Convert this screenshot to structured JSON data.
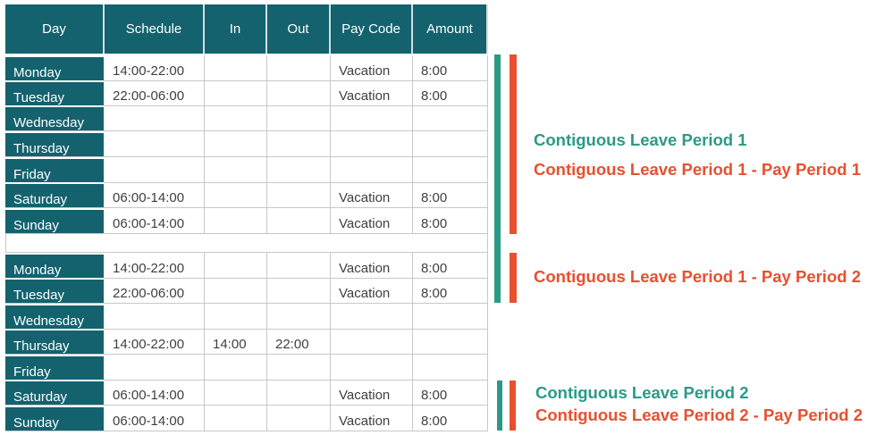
{
  "columns": [
    "Day",
    "Schedule",
    "In",
    "Out",
    "Pay Code",
    "Amount"
  ],
  "week1": [
    {
      "day": "Monday",
      "schedule": "14:00-22:00",
      "in": "",
      "out": "",
      "pay_code": "Vacation",
      "amount": "8:00"
    },
    {
      "day": "Tuesday",
      "schedule": "22:00-06:00",
      "in": "",
      "out": "",
      "pay_code": "Vacation",
      "amount": "8:00"
    },
    {
      "day": "Wednesday",
      "schedule": "",
      "in": "",
      "out": "",
      "pay_code": "",
      "amount": ""
    },
    {
      "day": "Thursday",
      "schedule": "",
      "in": "",
      "out": "",
      "pay_code": "",
      "amount": ""
    },
    {
      "day": "Friday",
      "schedule": "",
      "in": "",
      "out": "",
      "pay_code": "",
      "amount": ""
    },
    {
      "day": "Saturday",
      "schedule": "06:00-14:00",
      "in": "",
      "out": "",
      "pay_code": "Vacation",
      "amount": "8:00"
    },
    {
      "day": "Sunday",
      "schedule": "06:00-14:00",
      "in": "",
      "out": "",
      "pay_code": "Vacation",
      "amount": "8:00"
    }
  ],
  "week2": [
    {
      "day": "Monday",
      "schedule": "14:00-22:00",
      "in": "",
      "out": "",
      "pay_code": "Vacation",
      "amount": "8:00"
    },
    {
      "day": "Tuesday",
      "schedule": "22:00-06:00",
      "in": "",
      "out": "",
      "pay_code": "Vacation",
      "amount": "8:00"
    },
    {
      "day": "Wednesday",
      "schedule": "",
      "in": "",
      "out": "",
      "pay_code": "",
      "amount": ""
    },
    {
      "day": "Thursday",
      "schedule": "14:00-22:00",
      "in": "14:00",
      "out": "22:00",
      "pay_code": "",
      "amount": ""
    },
    {
      "day": "Friday",
      "schedule": "",
      "in": "",
      "out": "",
      "pay_code": "",
      "amount": ""
    },
    {
      "day": "Saturday",
      "schedule": "06:00-14:00",
      "in": "",
      "out": "",
      "pay_code": "Vacation",
      "amount": "8:00"
    },
    {
      "day": "Sunday",
      "schedule": "06:00-14:00",
      "in": "",
      "out": "",
      "pay_code": "Vacation",
      "amount": "8:00"
    }
  ],
  "annotations": {
    "clp1": "Contiguous Leave Period 1",
    "clp1_pp1": "Contiguous Leave Period 1 - Pay Period 1",
    "clp1_pp2": "Contiguous Leave Period 1 - Pay Period 2",
    "clp2": "Contiguous Leave Period 2",
    "clp2_pp2": "Contiguous Leave Period 2 - Pay Period 2"
  },
  "colors": {
    "header": "#13626e",
    "leave_period": "#2a9a87",
    "pay_period": "#e8502f"
  }
}
